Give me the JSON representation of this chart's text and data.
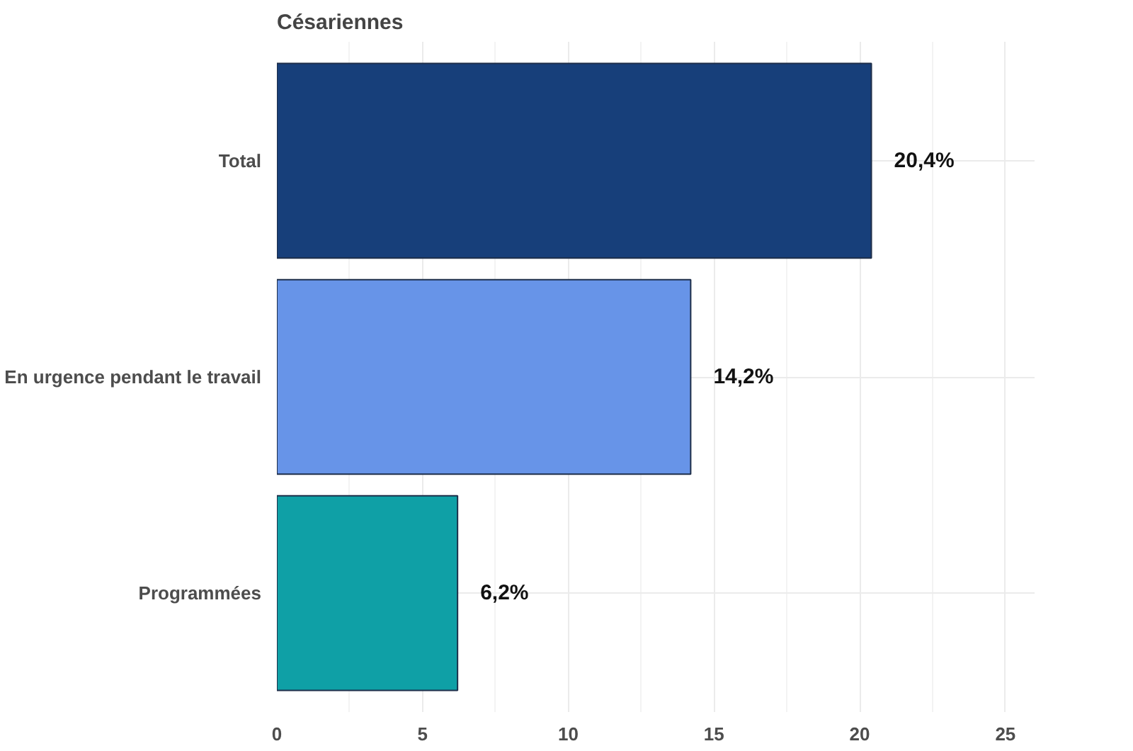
{
  "chart_data": {
    "type": "bar",
    "orientation": "horizontal",
    "title": "Césariennes",
    "categories": [
      "Total",
      "En urgence pendant le travail",
      "Programmées"
    ],
    "values": [
      20.4,
      14.2,
      6.2
    ],
    "colors": [
      "#173f7a",
      "#6794e8",
      "#0fa0a6"
    ],
    "value_labels": [
      "20,4%",
      "14,2%",
      "6,2%"
    ],
    "xlim": [
      0,
      26
    ],
    "xticks": [
      0,
      5,
      10,
      15,
      20,
      25
    ],
    "grid": true
  }
}
